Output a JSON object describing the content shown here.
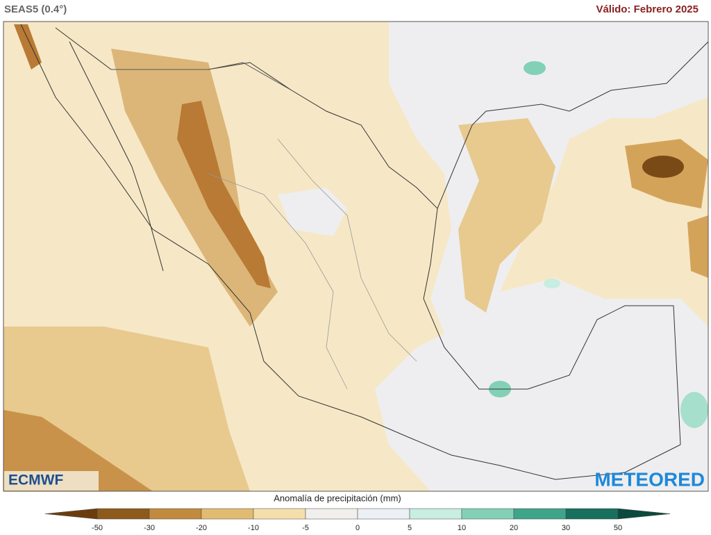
{
  "header": {
    "model": "SEAS5 (0.4°)",
    "valid": "Válido: Febrero 2025"
  },
  "logos": {
    "left": "ECMWF",
    "right": "METEORED"
  },
  "legend": {
    "title": "Anomalía de precipitación (mm)",
    "ticks": [
      -50,
      -30,
      -20,
      -10,
      -5,
      0,
      5,
      10,
      20,
      30,
      50
    ],
    "colors": [
      "#6b3d0e",
      "#8e5a1c",
      "#c28a3e",
      "#e2bb72",
      "#f4dfac",
      "#f1efec",
      "#eceff3",
      "#c8ede1",
      "#82d1b7",
      "#3fa58a",
      "#17705d",
      "#0b4a3c"
    ]
  }
}
